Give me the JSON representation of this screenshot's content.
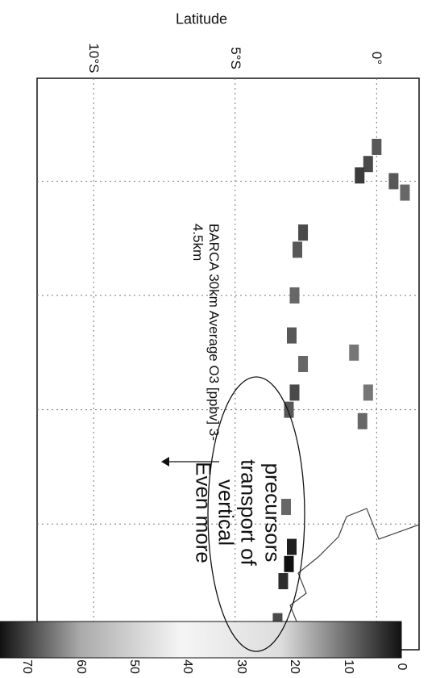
{
  "chart_data": {
    "type": "heatmap",
    "title": "BARCA 30km Average O3 [ppbv] 3-4.5km",
    "ylabel": "Latitude",
    "lat_ticks": [
      "0°",
      "5°S",
      "10°S"
    ],
    "lat_range": [
      -12,
      1.5
    ],
    "colorbar": {
      "ticks": [
        "0",
        "10",
        "20",
        "30",
        "40",
        "50",
        "60",
        "70"
      ],
      "range": [
        0,
        75
      ]
    },
    "grid": true,
    "annotation": {
      "lines": [
        "Even more",
        "vertical",
        "transport of",
        "precursors"
      ]
    },
    "cells": [
      {
        "x": 0.12,
        "lat": 0.0,
        "value": 50
      },
      {
        "x": 0.15,
        "lat": -0.3,
        "value": 55
      },
      {
        "x": 0.17,
        "lat": -0.6,
        "value": 60
      },
      {
        "x": 0.2,
        "lat": 1.0,
        "value": 45
      },
      {
        "x": 0.18,
        "lat": 0.6,
        "value": 50
      },
      {
        "x": 0.27,
        "lat": -2.6,
        "value": 55
      },
      {
        "x": 0.3,
        "lat": -2.8,
        "value": 50
      },
      {
        "x": 0.38,
        "lat": -2.9,
        "value": 45
      },
      {
        "x": 0.45,
        "lat": -3.0,
        "value": 50
      },
      {
        "x": 0.5,
        "lat": -2.6,
        "value": 45
      },
      {
        "x": 0.55,
        "lat": -2.9,
        "value": 55
      },
      {
        "x": 0.58,
        "lat": -3.1,
        "value": 50
      },
      {
        "x": 0.55,
        "lat": -0.3,
        "value": 40
      },
      {
        "x": 0.6,
        "lat": -0.5,
        "value": 45
      },
      {
        "x": 0.48,
        "lat": -0.8,
        "value": 40
      },
      {
        "x": 0.75,
        "lat": -3.2,
        "value": 45
      },
      {
        "x": 0.82,
        "lat": -3.0,
        "value": 70
      },
      {
        "x": 0.85,
        "lat": -3.1,
        "value": 75
      },
      {
        "x": 0.88,
        "lat": -3.3,
        "value": 65
      },
      {
        "x": 0.95,
        "lat": -3.5,
        "value": 55
      },
      {
        "x": 0.97,
        "lat": -3.8,
        "value": 50
      }
    ]
  }
}
